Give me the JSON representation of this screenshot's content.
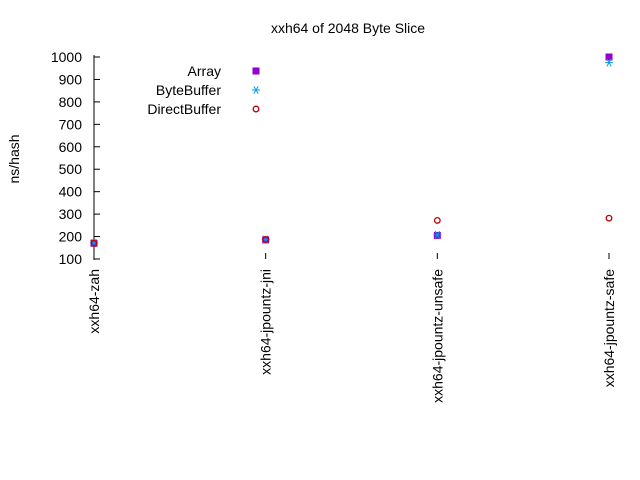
{
  "chart_data": {
    "type": "scatter",
    "title": "xxh64 of 2048 Byte Slice",
    "xlabel": "",
    "ylabel": "ns/hash",
    "categories": [
      "xxh64-zah",
      "xxh64-jpountz-jni",
      "xxh64-jpountz-unsafe",
      "xxh64-jpountz-safe"
    ],
    "ylim": [
      100,
      1000
    ],
    "yticks": [
      100,
      200,
      300,
      400,
      500,
      600,
      700,
      800,
      900,
      1000
    ],
    "grid": false,
    "legend_position": "top-left",
    "series": [
      {
        "name": "Array",
        "marker": "filled-square",
        "color": "#9400d3",
        "values": [
          170,
          185,
          205,
          1000
        ]
      },
      {
        "name": "ByteBuffer",
        "marker": "asterisk",
        "color": "#009ee0",
        "values": [
          172,
          187,
          207,
          975
        ]
      },
      {
        "name": "DirectBuffer",
        "marker": "open-circle",
        "color": "#c00000",
        "values": [
          170,
          187,
          272,
          282
        ]
      }
    ]
  }
}
